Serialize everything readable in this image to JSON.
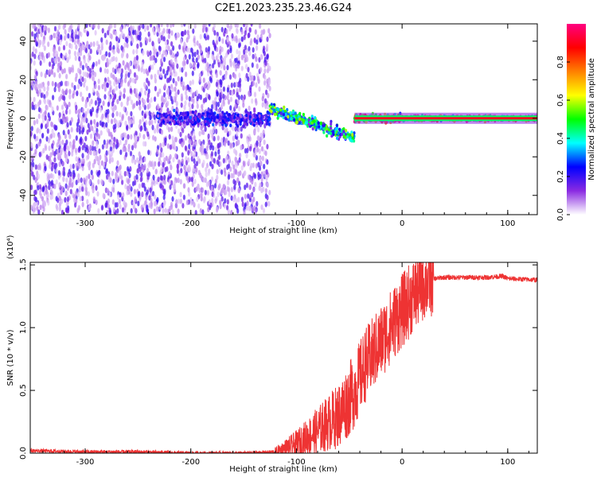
{
  "title": "C2E1.2023.235.23.46.G24",
  "chart_data": [
    {
      "type": "heatmap",
      "xlabel": "Height of straight line (km)",
      "ylabel": "Frequency (Hz)",
      "xlim": [
        -352,
        128
      ],
      "ylim": [
        -50,
        49
      ],
      "x_ticks": [
        -300,
        -200,
        -100,
        0,
        100
      ],
      "x_tick_labels": [
        "-300",
        "-200",
        "-100",
        "0",
        "100"
      ],
      "y_ticks": [
        -40,
        -20,
        0,
        20,
        40
      ],
      "y_tick_labels": [
        "-40",
        "-20",
        "0",
        "20",
        "40"
      ],
      "colorbar": {
        "label": "Normalized spectral amplitude",
        "range": [
          0,
          1
        ],
        "ticks": [
          0.0,
          0.2,
          0.4,
          0.6,
          0.8
        ],
        "tick_labels": [
          "0.0",
          "0.2",
          "0.4",
          "0.6",
          "0.8"
        ],
        "colormap": [
          "#ffffff",
          "#8a2be2",
          "#0000ff",
          "#00ffff",
          "#00ff00",
          "#ffff00",
          "#ff8000",
          "#ff0000",
          "#ff0080"
        ]
      },
      "regions": [
        {
          "x_range": [
            -352,
            -125
          ],
          "freq_spread": 49,
          "amplitude": 0.1,
          "description_level": "noise"
        },
        {
          "x_range": [
            -232,
            -125
          ],
          "center_freq": 0,
          "freq_spread": 6,
          "amplitude": 0.2
        },
        {
          "x_range": [
            -125,
            -45
          ],
          "center_freq_start": 5,
          "center_freq_end": -10,
          "freq_spread": 5,
          "amplitude": 0.4
        },
        {
          "x_range": [
            -45,
            0
          ],
          "center_freq": 0,
          "freq_spread": 3,
          "amplitude": 0.8
        },
        {
          "x_range": [
            0,
            128
          ],
          "center_freq": 0,
          "freq_spread": 2,
          "amplitude": 0.9
        }
      ],
      "grid": false
    },
    {
      "type": "line",
      "xlabel": "Height of straight line (km)",
      "ylabel": "SNR (10 * v/v)",
      "multiplier": "(x10⁴)",
      "xlim": [
        -352,
        128
      ],
      "ylim": [
        0,
        1.52
      ],
      "x_ticks": [
        -300,
        -200,
        -100,
        0,
        100
      ],
      "x_tick_labels": [
        "-300",
        "-200",
        "-100",
        "0",
        "100"
      ],
      "y_ticks": [
        0.0,
        0.5,
        1.0,
        1.5
      ],
      "y_tick_labels": [
        "0.0",
        "0.5",
        "1.0",
        "1.5"
      ],
      "color": "#ee3333",
      "series": [
        {
          "x": [
            -352,
            -300,
            -250,
            -200,
            -150,
            -120,
            -100,
            -80,
            -60,
            -45,
            -35,
            -25,
            -15,
            -5,
            0,
            10,
            20,
            30,
            40,
            60,
            80,
            95,
            100,
            128
          ],
          "values": [
            0.02,
            0.01,
            0.01,
            0.0,
            0.0,
            0.01,
            0.07,
            0.18,
            0.3,
            0.5,
            0.7,
            0.82,
            0.95,
            1.08,
            1.13,
            1.25,
            1.35,
            1.39,
            1.4,
            1.4,
            1.4,
            1.41,
            1.39,
            1.38
          ]
        }
      ],
      "grid": false
    }
  ]
}
